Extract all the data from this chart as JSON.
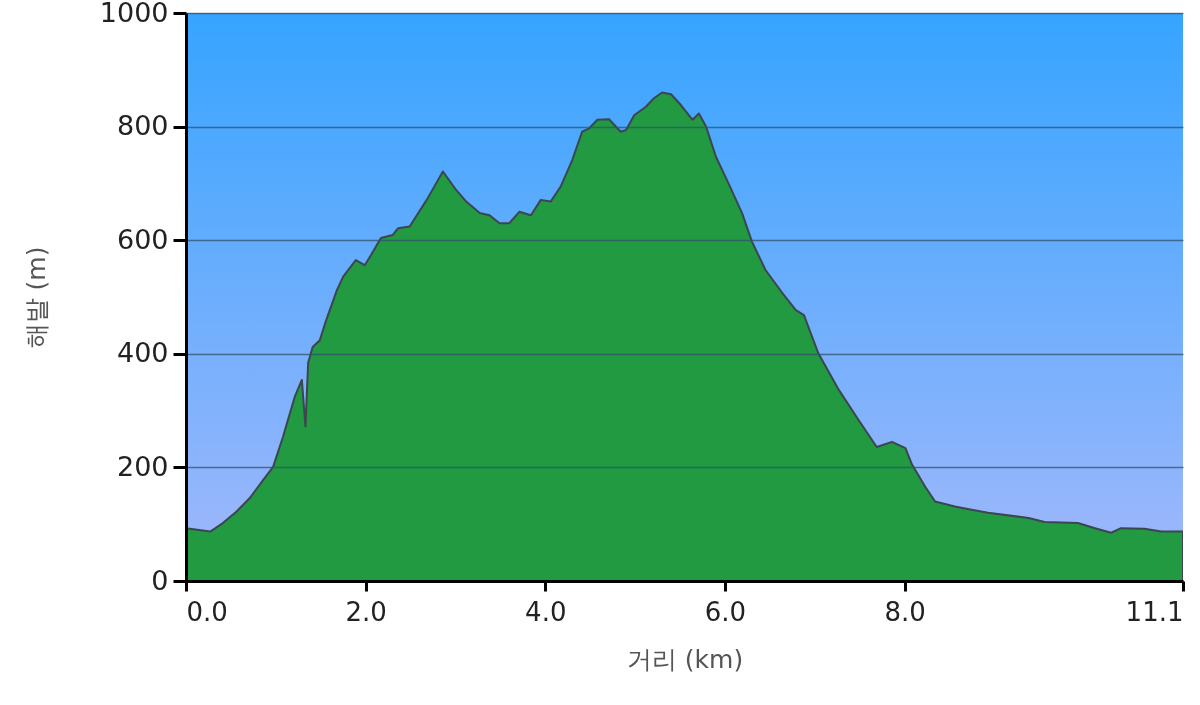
{
  "chart_data": {
    "type": "area",
    "xlabel": "거리 (km)",
    "ylabel": "해발 (m)",
    "xlim": [
      0,
      11.1
    ],
    "xticks": [
      {
        "value": 0,
        "label": "0.0"
      },
      {
        "value": 2,
        "label": "2.0"
      },
      {
        "value": 4,
        "label": "4.0"
      },
      {
        "value": 6,
        "label": "6.0"
      },
      {
        "value": 8,
        "label": "8.0"
      },
      11.1
    ],
    "ylim": [
      0,
      1000
    ],
    "yticks": [
      0,
      200,
      400,
      600,
      800,
      1000
    ],
    "grid": "y",
    "series": [
      {
        "color": "#219a42",
        "x": [
          0,
          0.27,
          0.41,
          0.56,
          0.71,
          0.86,
          0.97,
          1.08,
          1.21,
          1.29,
          1.33,
          1.36,
          1.41,
          1.49,
          1.56,
          1.68,
          1.75,
          1.89,
          1.99,
          2.06,
          2.17,
          2.3,
          2.36,
          2.49,
          2.68,
          2.86,
          3.01,
          3.12,
          3.27,
          3.38,
          3.49,
          3.6,
          3.71,
          3.84,
          3.95,
          4.06,
          4.17,
          4.3,
          4.41,
          4.49,
          4.58,
          4.71,
          4.84,
          4.9,
          4.99,
          5.12,
          5.21,
          5.3,
          5.4,
          5.51,
          5.64,
          5.71,
          5.79,
          5.9,
          6.04,
          6.19,
          6.3,
          6.45,
          6.64,
          6.79,
          6.88,
          7.04,
          7.27,
          7.49,
          7.69,
          7.86,
          8.01,
          8.08,
          8.23,
          8.34,
          8.56,
          8.93,
          9.38,
          9.56,
          9.93,
          10.12,
          10.3,
          10.41,
          10.67,
          10.86,
          11.1
        ],
        "values": [
          93,
          87,
          102,
          122,
          146,
          178,
          201,
          254,
          324,
          354,
          272,
          384,
          412,
          424,
          459,
          512,
          536,
          565,
          556,
          574,
          604,
          609,
          621,
          624,
          671,
          721,
          688,
          668,
          648,
          644,
          630,
          630,
          650,
          644,
          671,
          668,
          694,
          741,
          791,
          797,
          812,
          813,
          791,
          794,
          820,
          835,
          850,
          860,
          857,
          838,
          812,
          823,
          800,
          747,
          700,
          648,
          598,
          548,
          507,
          477,
          468,
          401,
          336,
          283,
          236,
          245,
          234,
          206,
          166,
          140,
          131,
          120,
          111,
          104,
          102,
          93,
          85,
          93,
          92,
          87,
          87
        ]
      }
    ]
  }
}
